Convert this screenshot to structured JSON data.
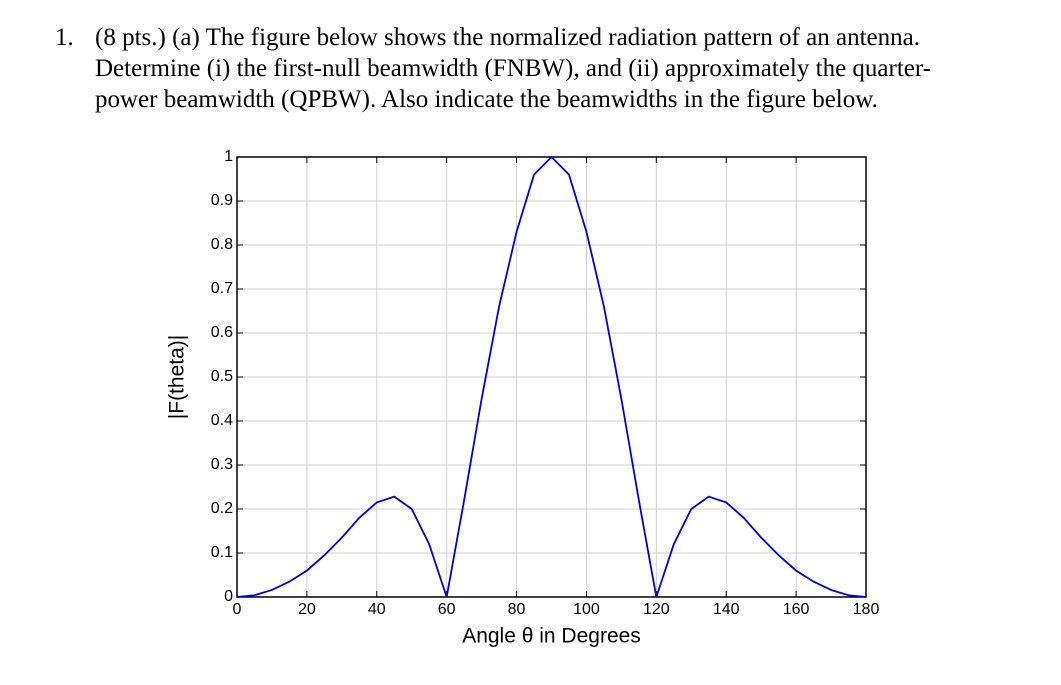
{
  "question": {
    "number": "1.",
    "lines": [
      "(8 pts.) (a) The figure below shows the normalized radiation pattern of an antenna.",
      "Determine (i) the first-null beamwidth (FNBW), and (ii) approximately the quarter-",
      "power beamwidth (QPBW).  Also indicate the beamwidths in the figure below."
    ]
  },
  "chart_data": {
    "type": "line",
    "xlabel": "Angle θ in Degrees",
    "ylabel": "|F(theta)|",
    "x": [
      0,
      5,
      10,
      15,
      20,
      25,
      30,
      35,
      40,
      45,
      50,
      55,
      60,
      65,
      70,
      75,
      80,
      85,
      90,
      95,
      100,
      105,
      110,
      115,
      120,
      125,
      130,
      135,
      140,
      145,
      150,
      155,
      160,
      165,
      170,
      175,
      180
    ],
    "series": [
      {
        "color": "#0000e0",
        "values": [
          0,
          0.004,
          0.016,
          0.035,
          0.06,
          0.095,
          0.135,
          0.18,
          0.215,
          0.228,
          0.2,
          0.12,
          0,
          0.22,
          0.45,
          0.66,
          0.83,
          0.96,
          1,
          0.96,
          0.83,
          0.66,
          0.45,
          0.22,
          0,
          0.12,
          0.2,
          0.228,
          0.215,
          0.18,
          0.135,
          0.095,
          0.06,
          0.035,
          0.016,
          0.004,
          0
        ]
      }
    ],
    "xlim": [
      0,
      180
    ],
    "xticks": [
      0,
      20,
      40,
      60,
      80,
      100,
      120,
      140,
      160,
      180
    ],
    "ylim": [
      0,
      1
    ],
    "yticks": [
      0,
      0.1,
      0.2,
      0.3,
      0.4,
      0.5,
      0.6,
      0.7,
      0.8,
      0.9,
      1
    ],
    "grid": true
  }
}
